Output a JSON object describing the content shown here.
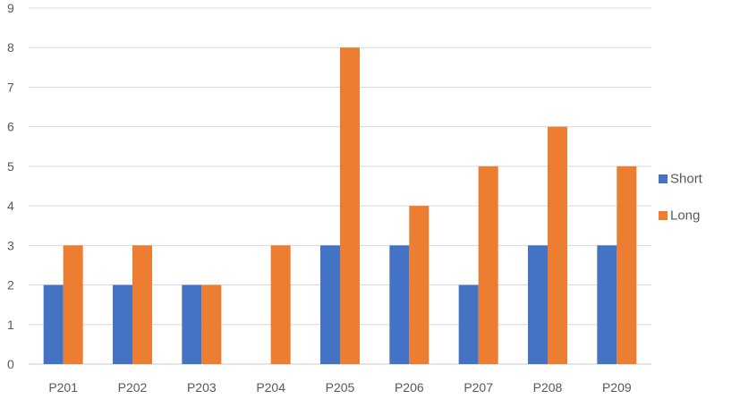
{
  "chart_data": {
    "type": "bar",
    "categories": [
      "P201",
      "P202",
      "P203",
      "P204",
      "P205",
      "P206",
      "P207",
      "P208",
      "P209"
    ],
    "series": [
      {
        "name": "Short",
        "color": "#4472C4",
        "values": [
          2,
          2,
          2,
          0,
          3,
          3,
          2,
          3,
          3
        ]
      },
      {
        "name": "Long",
        "color": "#ED7D31",
        "values": [
          3,
          3,
          2,
          3,
          8,
          4,
          5,
          6,
          5
        ]
      }
    ],
    "ylim": [
      0,
      9
    ],
    "yticks": [
      "0",
      "1",
      "2",
      "3",
      "4",
      "5",
      "6",
      "7",
      "8",
      "9"
    ],
    "grid": true,
    "legend_position": "right",
    "title": "",
    "xlabel": "",
    "ylabel": ""
  }
}
